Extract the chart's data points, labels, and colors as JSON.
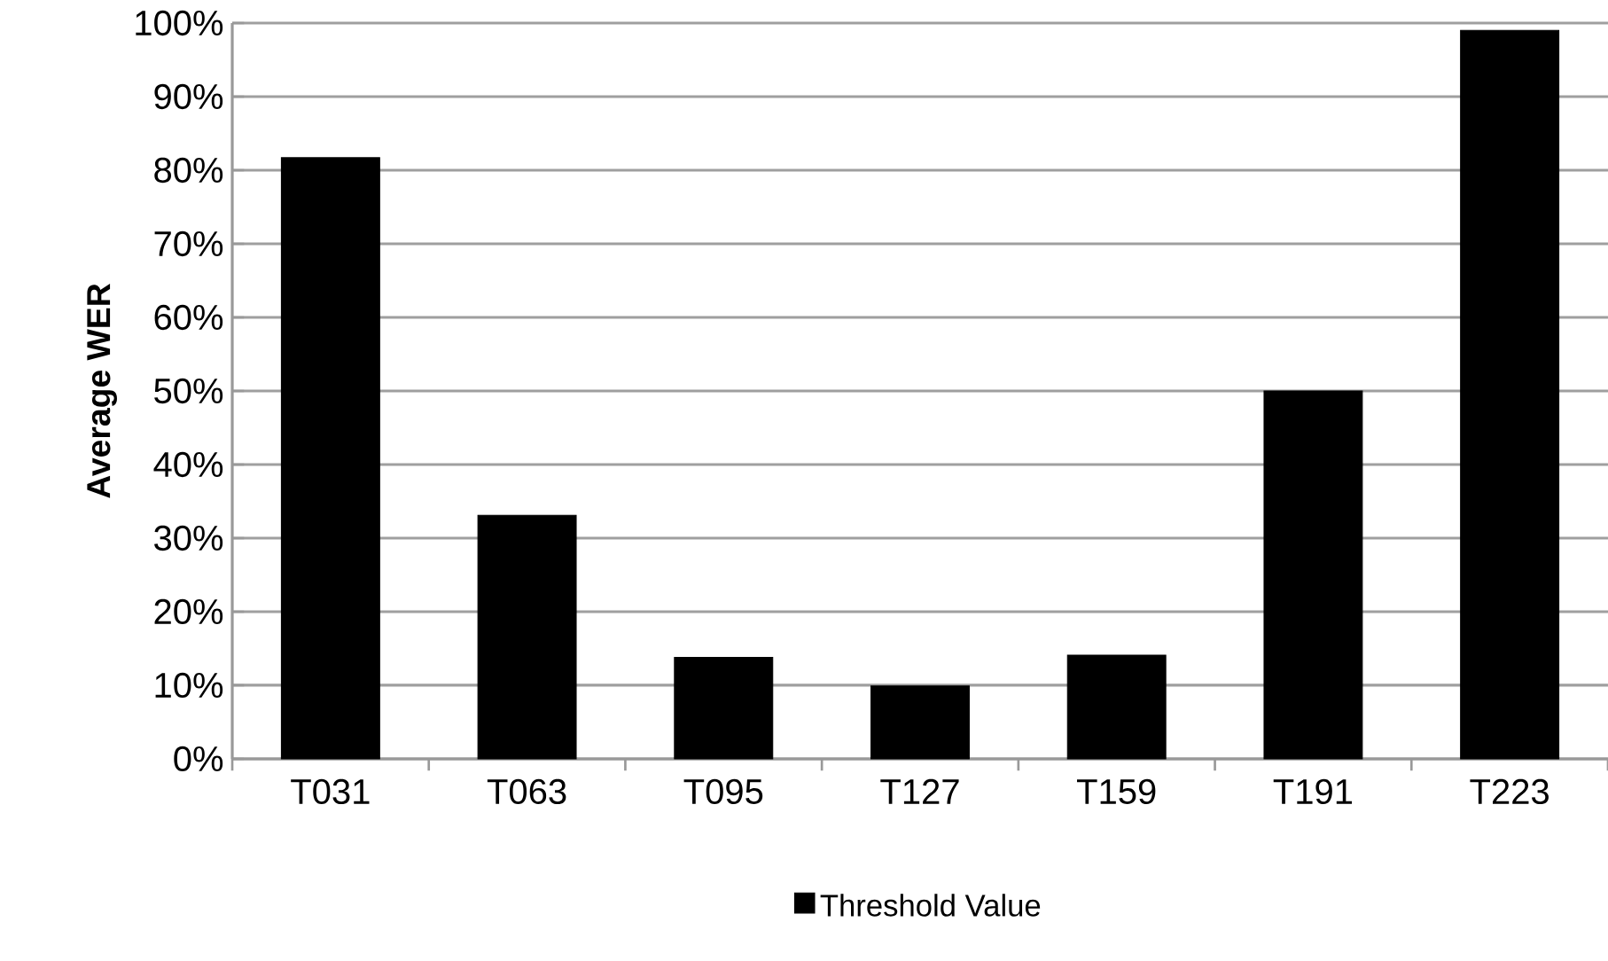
{
  "chart_data": {
    "type": "bar",
    "ylabel": "Average WER",
    "categories": [
      "T031",
      "T063",
      "T095",
      "T127",
      "T159",
      "T191",
      "T223"
    ],
    "series": [
      {
        "name": "Threshold Value",
        "color": "#000000",
        "values": [
          81.7,
          33.1,
          13.8,
          9.9,
          14.1,
          50.0,
          99.0
        ]
      }
    ],
    "ylim": [
      0,
      100
    ],
    "yticks": [
      {
        "value": 0,
        "label": "0%"
      },
      {
        "value": 10,
        "label": "10%"
      },
      {
        "value": 20,
        "label": "20%"
      },
      {
        "value": 30,
        "label": "30%"
      },
      {
        "value": 40,
        "label": "40%"
      },
      {
        "value": 50,
        "label": "50%"
      },
      {
        "value": 60,
        "label": "60%"
      },
      {
        "value": 70,
        "label": "70%"
      },
      {
        "value": 80,
        "label": "80%"
      },
      {
        "value": 90,
        "label": "90%"
      },
      {
        "value": 100,
        "label": "100%"
      }
    ],
    "grid": "y",
    "legend": "bottom"
  }
}
